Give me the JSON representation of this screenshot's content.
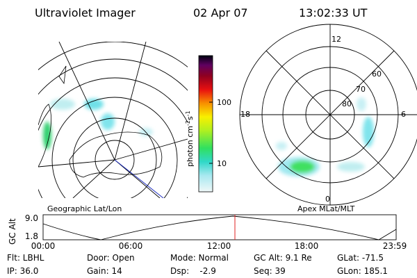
{
  "header": {
    "instrument": "Ultraviolet Imager",
    "date": "02 Apr 07",
    "time": "13:02:33 UT"
  },
  "left_panel": {
    "label": "Geographic Lat/Lon"
  },
  "colorbar": {
    "label": "photon cm",
    "label_exp1": "-2",
    "label_mid": "s",
    "label_exp2": "-1",
    "ticks": [
      "100",
      "10"
    ]
  },
  "right_panel": {
    "label": "Apex MLat/MLT",
    "mlt": {
      "top": "12",
      "left": "18",
      "right": "6",
      "bottom": "0"
    },
    "mlat": [
      "60",
      "70",
      "80"
    ]
  },
  "timeline": {
    "axis_label": "GC Alt",
    "yticks": [
      "9.0",
      "1.8"
    ],
    "xticks": [
      "00:00",
      "06:00",
      "12:00",
      "18:00",
      "23:59"
    ]
  },
  "footer": {
    "rows": [
      [
        "Flt: LBHL",
        "Door: Open",
        "Mode: Normal",
        "GC Alt: 9.1 Re",
        "GLat: -71.5"
      ],
      [
        "IP: 36.0",
        "Gain: 14",
        "Dsp:    -2.9",
        "Seq: 39",
        "GLon: 185.1"
      ]
    ]
  }
}
